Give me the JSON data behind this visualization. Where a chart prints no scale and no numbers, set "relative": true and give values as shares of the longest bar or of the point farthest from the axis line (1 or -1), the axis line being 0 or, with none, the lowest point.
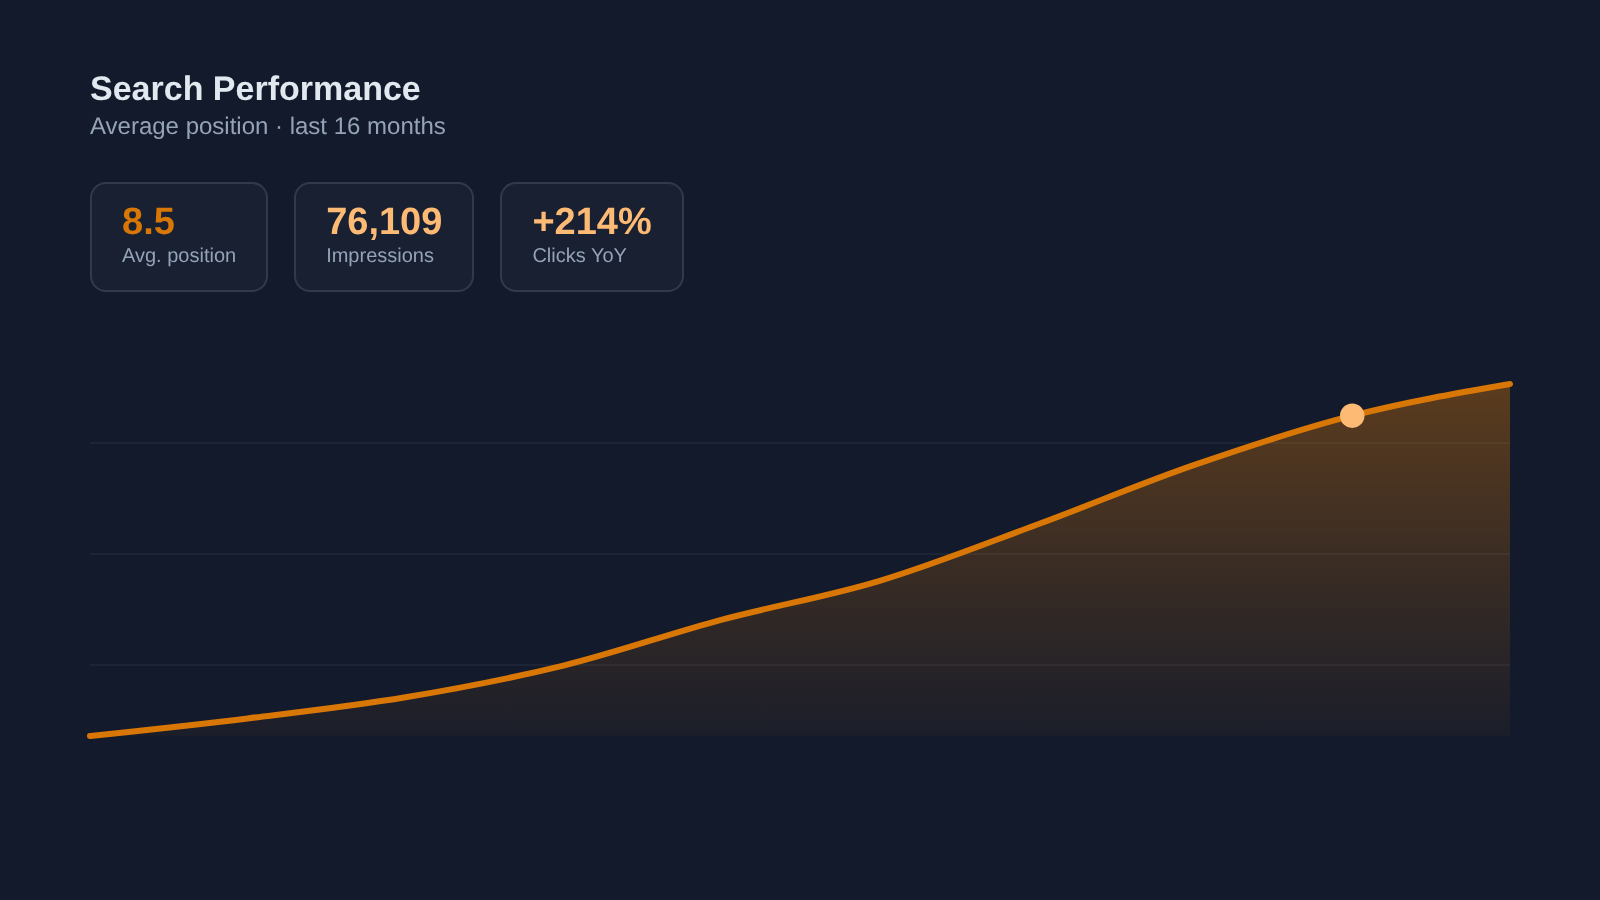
{
  "chart_data": {
    "type": "area",
    "title": "Search Performance",
    "subtitle": "Average position · last 16 months",
    "annotations": [
      "8.5",
      "Avg. position",
      "76,109",
      "Impressions",
      "+214%",
      "Clicks YoY"
    ],
    "categories": [
      null,
      null,
      null,
      null,
      null,
      null,
      null,
      null,
      null,
      null
    ],
    "relative": true,
    "grid": true,
    "series": [
      {
        "color": "#d97706",
        "values": [
          0,
          0.05,
          0.11,
          0.2,
          0.33,
          0.44,
          0.6,
          0.77,
          0.91,
          1
        ]
      },
      {
        "type": "line",
        "color": "#fdba74",
        "marker": "circle",
        "values": [
          null,
          null,
          null,
          null,
          null,
          null,
          null,
          null,
          0.91,
          null
        ]
      }
    ]
  }
}
